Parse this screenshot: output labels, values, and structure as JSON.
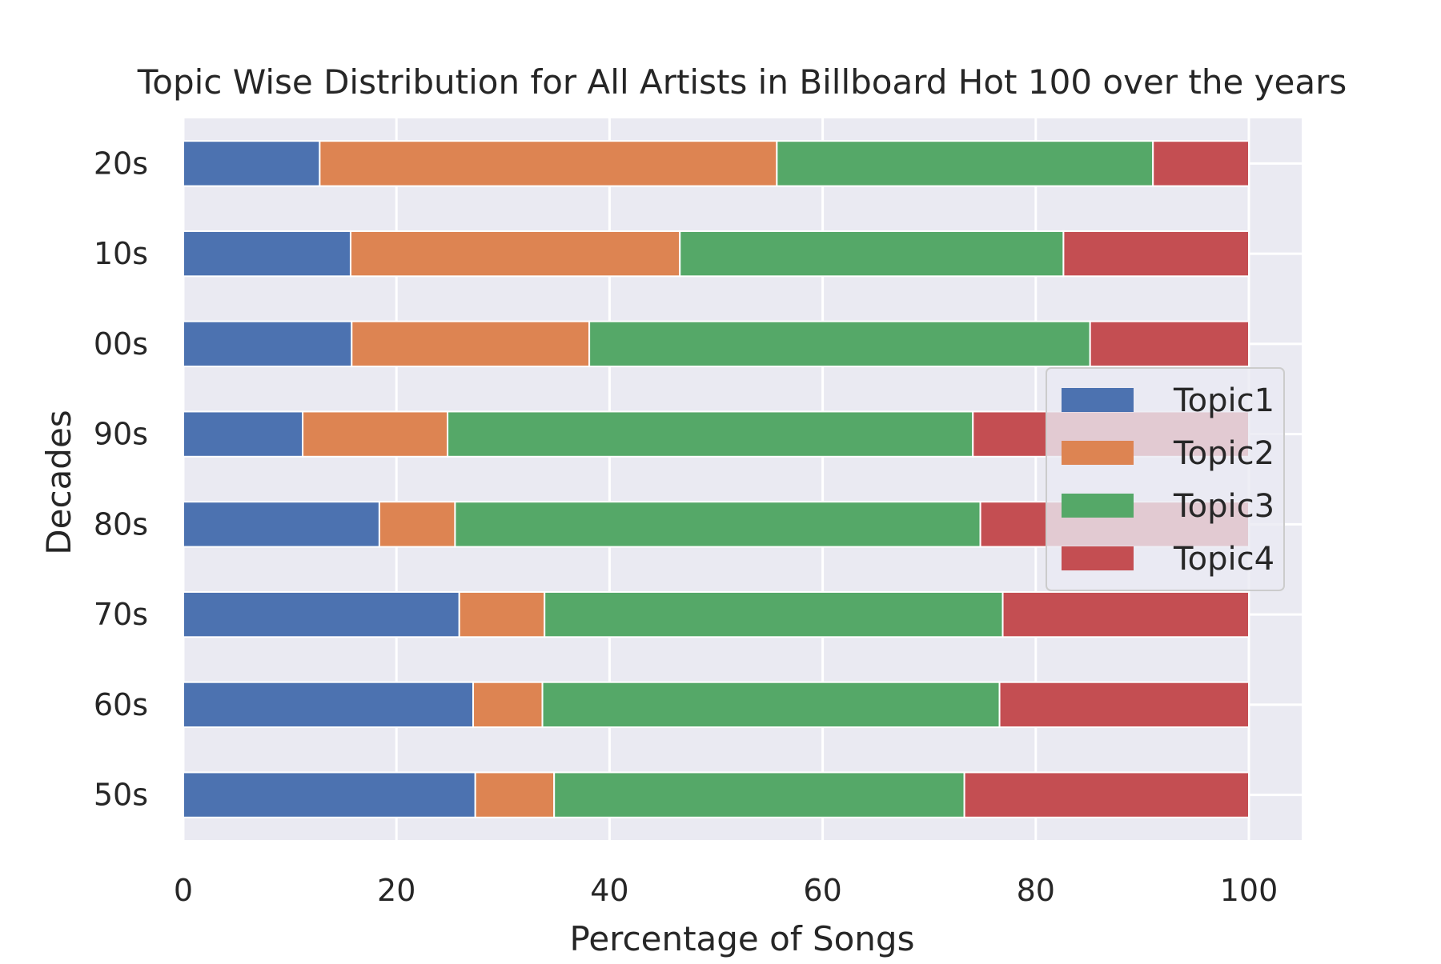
{
  "chart_data": {
    "type": "bar",
    "orientation": "horizontal",
    "stacked": true,
    "title": "Topic Wise Distribution for All Artists in Billboard Hot 100 over the years",
    "xlabel": "Percentage of Songs",
    "ylabel": "Decades",
    "xlim": [
      0,
      105
    ],
    "xticks": [
      "0",
      "20",
      "40",
      "60",
      "80",
      "100"
    ],
    "grid": true,
    "legend_position": "center-right",
    "categories": [
      "50s",
      "60s",
      "70s",
      "80s",
      "90s",
      "00s",
      "10s",
      "20s"
    ],
    "series": [
      {
        "name": "Topic1",
        "color": "#4C72B0",
        "values": [
          27.4,
          27.2,
          25.9,
          18.4,
          11.2,
          15.8,
          15.7,
          12.8
        ]
      },
      {
        "name": "Topic2",
        "color": "#DD8452",
        "values": [
          7.4,
          6.5,
          8.0,
          7.1,
          13.6,
          22.3,
          30.9,
          42.9
        ]
      },
      {
        "name": "Topic3",
        "color": "#55A868",
        "values": [
          38.5,
          42.9,
          43.0,
          49.3,
          49.3,
          47.0,
          36.0,
          35.3
        ]
      },
      {
        "name": "Topic4",
        "color": "#C44E52",
        "values": [
          26.7,
          23.4,
          23.1,
          25.2,
          25.9,
          14.9,
          17.4,
          9.0
        ]
      }
    ]
  }
}
